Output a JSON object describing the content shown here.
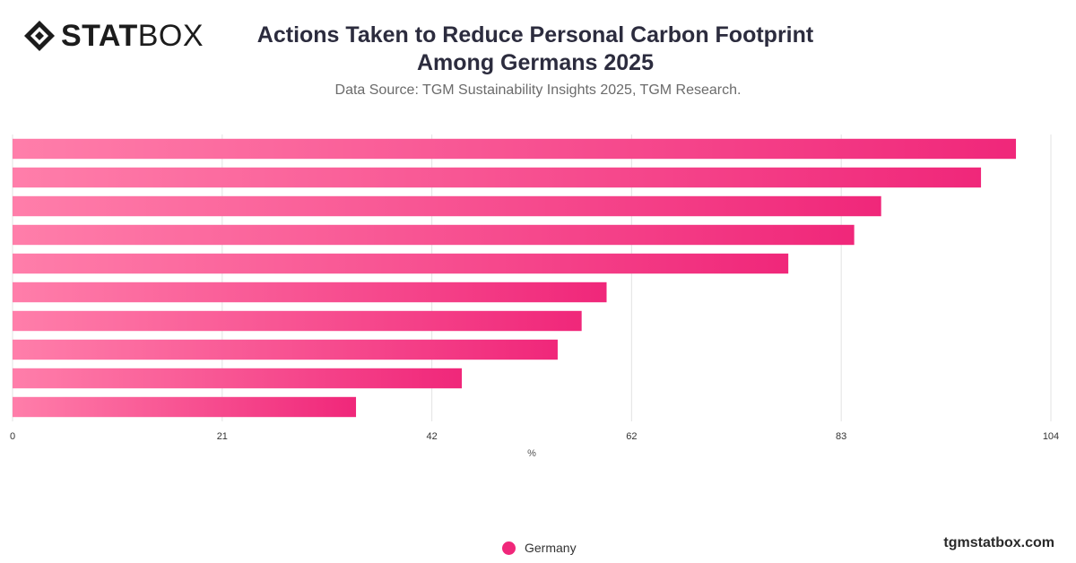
{
  "logo": {
    "part1": "STAT",
    "part2": "BOX"
  },
  "header": {
    "title_line1": "Actions Taken to Reduce Personal Carbon Footprint",
    "title_line2": "Among Germans 2025",
    "subtitle": "Data Source: TGM Sustainability Insights 2025, TGM Research."
  },
  "legend": {
    "label": "Germany"
  },
  "footer": {
    "brand": "tgmstatbox.com"
  },
  "chart_data": {
    "type": "bar",
    "orientation": "horizontal",
    "xlabel": "%",
    "xlim": [
      0,
      104
    ],
    "xticks": [
      "0",
      "21",
      "42",
      "62",
      "83",
      "104"
    ],
    "grid": true,
    "legend_position": "bottom-center",
    "series": [
      {
        "name": "Germany",
        "color": "#f0277a",
        "color_start": "#ff7eaa",
        "values": [
          100.5,
          97,
          87,
          84.3,
          77.7,
          59.5,
          57,
          54.6,
          45,
          34.4
        ]
      }
    ]
  }
}
